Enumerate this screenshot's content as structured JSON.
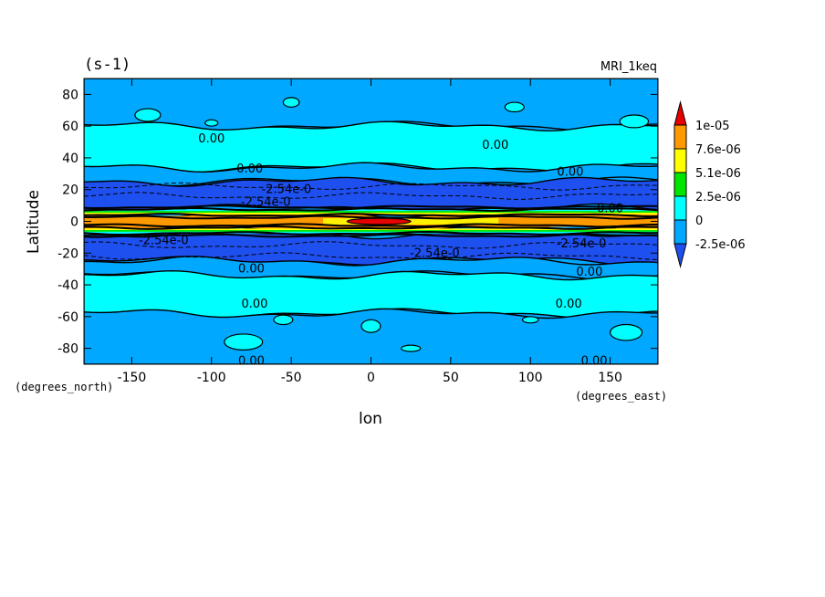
{
  "chart_data": {
    "type": "heatmap",
    "title": "(s-1)",
    "subtitle": "MRI_1keq",
    "xlabel": "lon",
    "ylabel": "Latitude",
    "x_units": "(degrees_east)",
    "y_units": "(degrees_north)",
    "xlim": [
      -180,
      180
    ],
    "ylim": [
      -90,
      90
    ],
    "x_ticks": [
      "-150",
      "-100",
      "-50",
      "0",
      "50",
      "100",
      "150"
    ],
    "y_ticks": [
      "80",
      "60",
      "40",
      "20",
      "0",
      "-20",
      "-40",
      "-60",
      "-80"
    ],
    "grid": false,
    "colorbar": {
      "placement": "right",
      "labels": [
        "1e-05",
        "7.6e-06",
        "5.1e-06",
        "2.5e-06",
        "0",
        "-2.5e-06"
      ],
      "colors": [
        "#e60000",
        "#ff9900",
        "#ffff00",
        "#00e600",
        "#00ffff",
        "#00a8ff",
        "#1e50f0"
      ]
    },
    "bands": [
      {
        "lat_range": [
          60,
          90
        ],
        "level": "below -2.5e-06 to 0",
        "color": "#00a8ff"
      },
      {
        "lat_range": [
          34,
          60
        ],
        "level": "0 to 2.5e-06",
        "color": "#00ffff"
      },
      {
        "lat_range": [
          25,
          34
        ],
        "level": "-2.5e-06 to 0",
        "color": "#00a8ff"
      },
      {
        "lat_range": [
          8,
          25
        ],
        "level": "below -2.5e-06",
        "color": "#1e50f0"
      },
      {
        "lat_range": [
          -5,
          5
        ],
        "level": "5.1e-06 to 1e-05",
        "color": "#ff9900"
      },
      {
        "lat_range": [
          -25,
          -8
        ],
        "level": "below -2.5e-06",
        "color": "#1e50f0"
      },
      {
        "lat_range": [
          -34,
          -25
        ],
        "level": "-2.5e-06 to 0",
        "color": "#00a8ff"
      },
      {
        "lat_range": [
          -58,
          -34
        ],
        "level": "0 to 2.5e-06",
        "color": "#00ffff"
      },
      {
        "lat_range": [
          -90,
          -58
        ],
        "level": "-2.5e-06 to 0",
        "color": "#00a8ff"
      }
    ],
    "max_region": {
      "lon_range": [
        -15,
        25
      ],
      "lat_range": [
        -2,
        2
      ],
      "level": "above 1e-05",
      "color": "#e60000"
    },
    "contour_labels": [
      {
        "text": "0.00",
        "lon": -100,
        "lat": 52
      },
      {
        "text": "0.00",
        "lon": 78,
        "lat": 48
      },
      {
        "text": "0.00",
        "lon": -76,
        "lat": 33
      },
      {
        "text": "0.00",
        "lon": 125,
        "lat": 31
      },
      {
        "text": "-2.54e-0",
        "lon": -53,
        "lat": 20
      },
      {
        "text": "-2.54e-0",
        "lon": -66,
        "lat": 12
      },
      {
        "text": "0.00",
        "lon": 150,
        "lat": 8
      },
      {
        "text": "-2.54e-0",
        "lon": -130,
        "lat": -12
      },
      {
        "text": "-2.54e-0",
        "lon": 40,
        "lat": -20
      },
      {
        "text": "-2.54e-0",
        "lon": 132,
        "lat": -14
      },
      {
        "text": "0.00",
        "lon": -75,
        "lat": -30
      },
      {
        "text": "0.00",
        "lon": 137,
        "lat": -32
      },
      {
        "text": "0.00",
        "lon": -73,
        "lat": -52
      },
      {
        "text": "0.00",
        "lon": 124,
        "lat": -52
      },
      {
        "text": "0.00",
        "lon": -75,
        "lat": -88
      },
      {
        "text": "0.00",
        "lon": 140,
        "lat": -88
      }
    ]
  }
}
